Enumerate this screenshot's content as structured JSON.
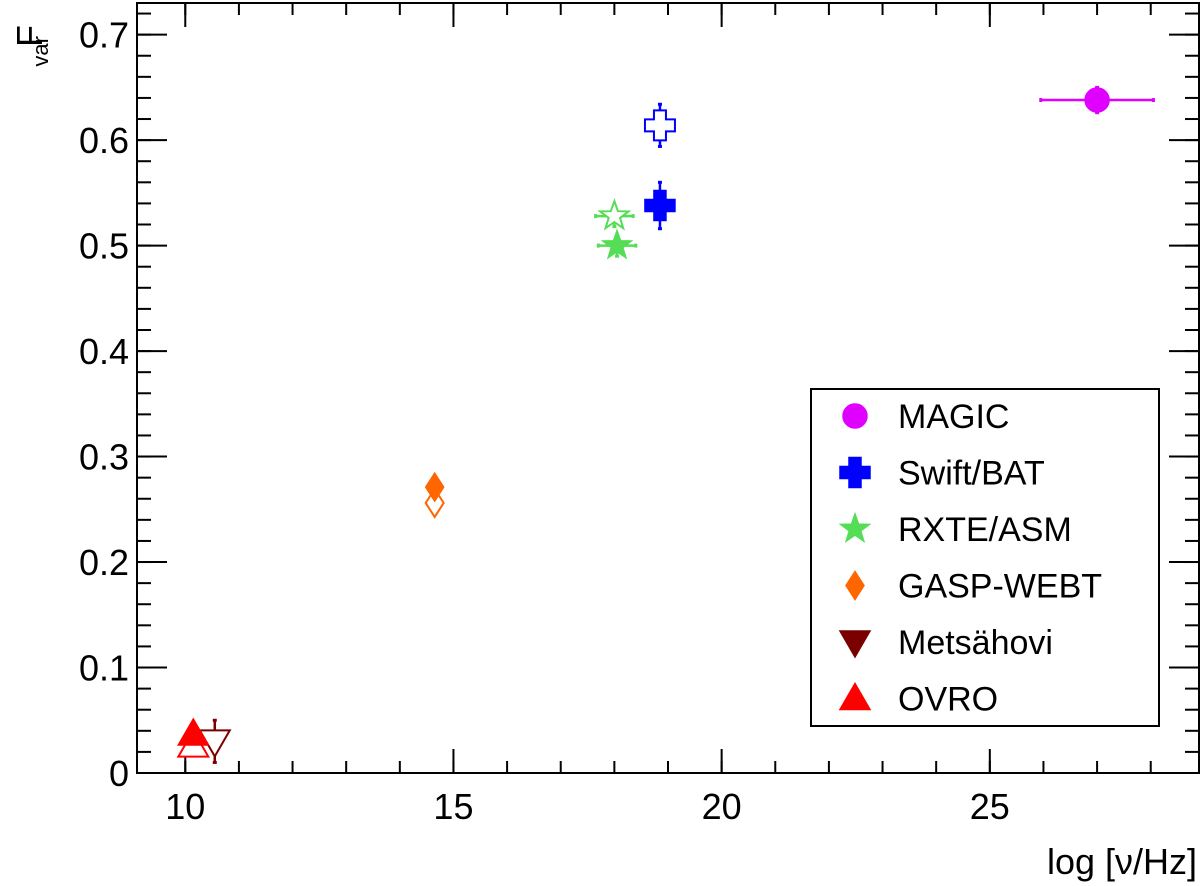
{
  "chart_data": {
    "type": "scatter",
    "xlabel": "log [ν/Hz]",
    "ylabel": "F",
    "ylabel_sub": "var",
    "xlim": [
      9.1,
      28.9
    ],
    "ylim": [
      0,
      0.73
    ],
    "x_major_ticks": [
      10,
      15,
      20,
      25
    ],
    "x_tick_labels": [
      "10",
      "15",
      "20",
      "25"
    ],
    "x_minor_step": 1,
    "y_major_ticks": [
      0,
      0.1,
      0.2,
      0.3,
      0.4,
      0.5,
      0.6,
      0.7
    ],
    "y_tick_labels": [
      "0",
      "0.1",
      "0.2",
      "0.3",
      "0.4",
      "0.5",
      "0.6",
      "0.7"
    ],
    "y_minor_step": 0.02,
    "grid": false,
    "legend_position": "right",
    "series": [
      {
        "name": "MAGIC",
        "marker": "circle",
        "color": "#e000ff",
        "points": [
          {
            "x": 27.0,
            "y": 0.638,
            "xerr": 1.05,
            "yerr": 0.012,
            "filled": true
          }
        ]
      },
      {
        "name": "Swift/BAT",
        "marker": "cross",
        "color": "#0000ff",
        "points": [
          {
            "x": 18.85,
            "y": 0.538,
            "xerr": 0.15,
            "yerr": 0.022,
            "filled": true
          },
          {
            "x": 18.85,
            "y": 0.614,
            "xerr": 0.15,
            "yerr": 0.02,
            "filled": false
          }
        ]
      },
      {
        "name": "RXTE/ASM",
        "marker": "star",
        "color": "#55dd55",
        "points": [
          {
            "x": 18.05,
            "y": 0.5,
            "xerr": 0.35,
            "yerr": 0.01,
            "filled": true
          },
          {
            "x": 18.0,
            "y": 0.528,
            "xerr": 0.35,
            "yerr": 0.01,
            "filled": false
          }
        ]
      },
      {
        "name": "GASP-WEBT",
        "marker": "diamond",
        "color": "#ff6600",
        "points": [
          {
            "x": 14.65,
            "y": 0.271,
            "xerr": 0,
            "yerr": 0.003,
            "filled": true
          },
          {
            "x": 14.65,
            "y": 0.256,
            "xerr": 0,
            "yerr": 0.003,
            "filled": false
          }
        ]
      },
      {
        "name": "Metsähovi",
        "marker": "triangle-down",
        "color": "#7a0000",
        "points": [
          {
            "x": 10.55,
            "y": 0.03,
            "xerr": 0,
            "yerr": 0.02,
            "filled": false
          }
        ]
      },
      {
        "name": "OVRO",
        "marker": "triangle-up",
        "color": "#ff0000",
        "points": [
          {
            "x": 10.15,
            "y": 0.037,
            "xerr": 0,
            "yerr": 0.004,
            "filled": true
          },
          {
            "x": 10.15,
            "y": 0.026,
            "xerr": 0,
            "yerr": 0.004,
            "filled": false
          }
        ]
      }
    ]
  }
}
